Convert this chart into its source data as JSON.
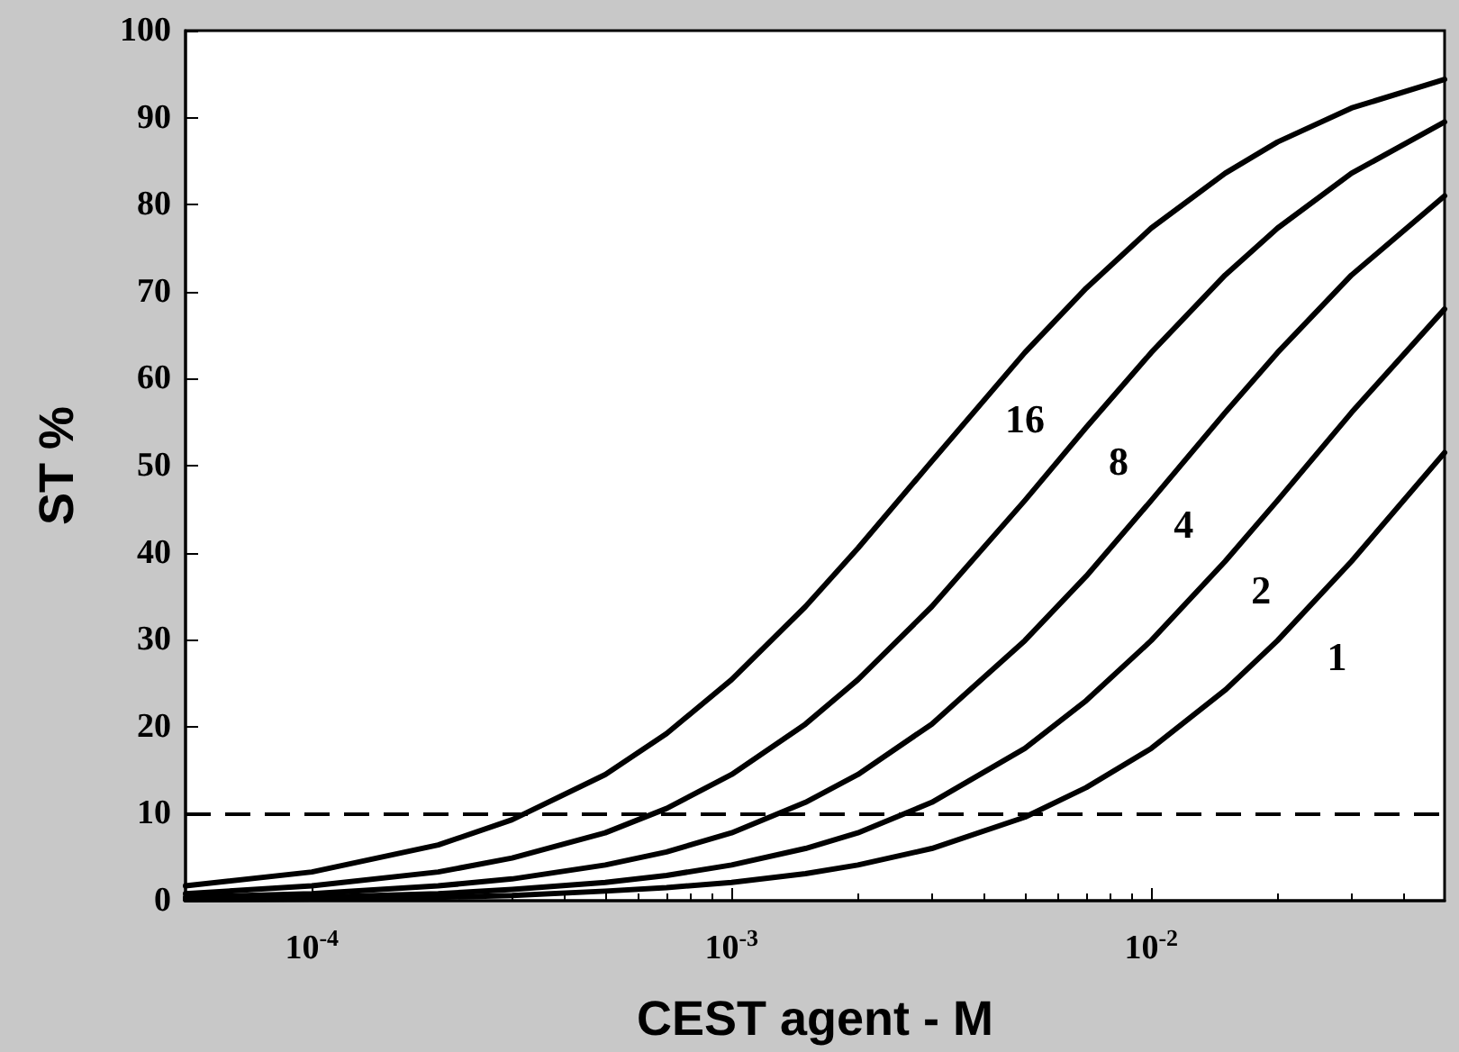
{
  "chart_data": {
    "type": "line",
    "xlabel": "CEST agent - M",
    "ylabel": "ST %",
    "x": [
      5e-05,
      0.0001,
      0.0002,
      0.0003,
      0.0005,
      0.0007,
      0.001,
      0.0015,
      0.002,
      0.003,
      0.005,
      0.007,
      0.01,
      0.015,
      0.02,
      0.03,
      0.05
    ],
    "series": [
      {
        "name": "16",
        "color": "#000000",
        "values": [
          1.7,
          3.3,
          6.4,
          9.3,
          14.5,
          19.2,
          25.4,
          33.8,
          40.5,
          50.5,
          63.0,
          70.4,
          77.3,
          83.6,
          87.2,
          91.1,
          94.4
        ]
      },
      {
        "name": "8",
        "color": "#000000",
        "values": [
          0.8,
          1.7,
          3.3,
          4.9,
          7.8,
          10.6,
          14.5,
          20.3,
          25.4,
          33.8,
          46.0,
          54.4,
          63.0,
          71.9,
          77.3,
          83.6,
          89.5
        ]
      },
      {
        "name": "4",
        "color": "#000000",
        "values": [
          0.4,
          0.8,
          1.7,
          2.5,
          4.1,
          5.6,
          7.8,
          11.3,
          14.5,
          20.3,
          29.9,
          37.3,
          46.0,
          56.1,
          63.0,
          71.9,
          81.0
        ]
      },
      {
        "name": "2",
        "color": "#000000",
        "values": [
          0.2,
          0.4,
          0.8,
          1.3,
          2.1,
          2.9,
          4.1,
          6.0,
          7.8,
          11.3,
          17.5,
          23.0,
          29.9,
          39.0,
          46.0,
          56.1,
          68.0
        ]
      },
      {
        "name": "1",
        "color": "#000000",
        "values": [
          0.1,
          0.2,
          0.4,
          0.6,
          1.1,
          1.5,
          2.1,
          3.1,
          4.1,
          6.0,
          9.6,
          13.0,
          17.5,
          24.2,
          29.9,
          39.0,
          51.5
        ]
      }
    ],
    "ref_lines": [
      {
        "axis": "y",
        "value": 10,
        "color": "#000000",
        "line_style": "dashed"
      }
    ],
    "log": "x",
    "xlim": [
      5e-05,
      0.05
    ],
    "xticks": [
      {
        "value": 0.0001,
        "label": "10$^{-4}$"
      },
      {
        "value": 0.001,
        "label": "10$^{-3}$"
      },
      {
        "value": 0.01,
        "label": "10$^{-2}$"
      }
    ],
    "ylim": [
      0,
      100
    ],
    "yticks": [
      0,
      10,
      20,
      30,
      40,
      50,
      60,
      70,
      80,
      90,
      100
    ],
    "marker": "none",
    "line_style": "solid",
    "grid": false,
    "legend": false
  }
}
